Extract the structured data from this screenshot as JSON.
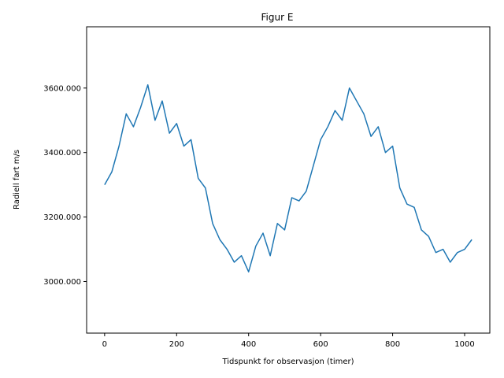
{
  "chart_data": {
    "type": "line",
    "title": "Figur E",
    "xlabel": "Tidspunkt for observasjon (timer)",
    "ylabel": "Radiell fart m/s",
    "xlim": [
      -50,
      1070
    ],
    "ylim": [
      2840,
      3790
    ],
    "xticks": [
      0,
      200,
      400,
      600,
      800,
      1000
    ],
    "xtick_labels": [
      "0",
      "200",
      "400",
      "600",
      "800",
      "1000"
    ],
    "yticks": [
      3000,
      3200,
      3400,
      3600
    ],
    "ytick_labels": [
      "3000.000",
      "3200.000",
      "3400.000",
      "3600.000"
    ],
    "grid": false,
    "legend": "none",
    "series_color": "#1f77b4",
    "series": [
      {
        "name": "",
        "x": [
          0,
          20,
          40,
          60,
          80,
          100,
          120,
          140,
          160,
          180,
          200,
          220,
          240,
          260,
          280,
          300,
          320,
          340,
          360,
          380,
          400,
          420,
          440,
          460,
          480,
          500,
          520,
          540,
          560,
          580,
          600,
          620,
          640,
          660,
          680,
          700,
          720,
          740,
          760,
          780,
          800,
          820,
          840,
          860,
          880,
          900,
          920,
          940,
          960,
          980,
          1000,
          1020
        ],
        "y": [
          3300,
          3340,
          3420,
          3520,
          3480,
          3540,
          3610,
          3500,
          3560,
          3460,
          3490,
          3420,
          3440,
          3320,
          3290,
          3180,
          3130,
          3100,
          3060,
          3080,
          3030,
          3110,
          3150,
          3080,
          3180,
          3160,
          3260,
          3250,
          3280,
          3360,
          3440,
          3480,
          3530,
          3500,
          3600,
          3560,
          3520,
          3450,
          3480,
          3400,
          3420,
          3290,
          3240,
          3230,
          3160,
          3140,
          3090,
          3100,
          3060,
          3090,
          3100,
          3130
        ]
      }
    ]
  }
}
